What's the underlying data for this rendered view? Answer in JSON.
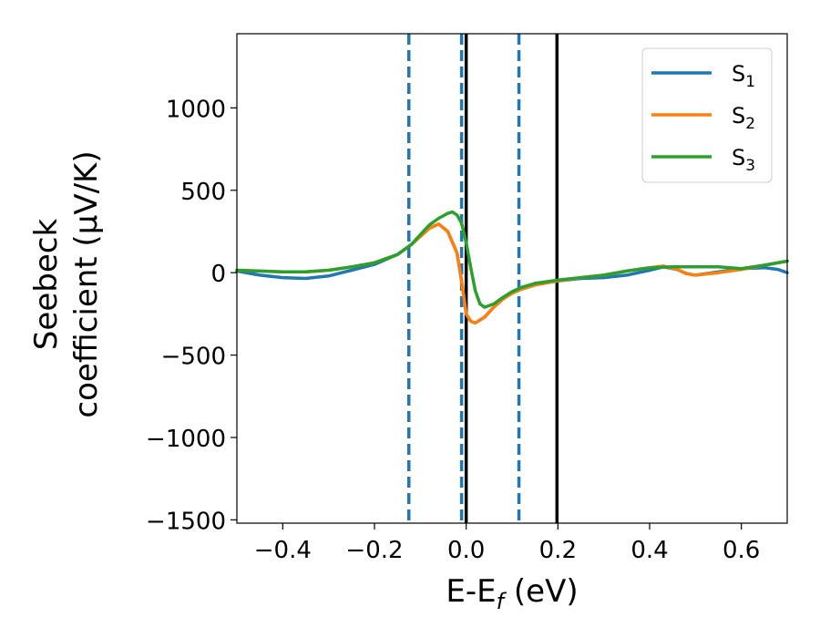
{
  "chart_data": {
    "type": "line",
    "xlabel_main": "E-E",
    "xlabel_sub": "f",
    "xlabel_unit": " (eV)",
    "ylabel_line1": "Seebeck",
    "ylabel_line2": "coefficient  (μV/K)",
    "xlim": [
      -0.5,
      0.7
    ],
    "ylim": [
      -1520,
      1450
    ],
    "x_ticks": [
      -0.4,
      -0.2,
      0.0,
      0.2,
      0.4,
      0.6
    ],
    "x_tick_labels": [
      "−0.4",
      "−0.2",
      "0.0",
      "0.2",
      "0.4",
      "0.6"
    ],
    "y_ticks": [
      1000,
      500,
      0,
      -500,
      -1000,
      -1500
    ],
    "y_tick_labels": [
      "1000",
      "500",
      "0",
      "−500",
      "−1000",
      "−1500"
    ],
    "grid": false,
    "legend_position": "top-right",
    "series": [
      {
        "name_main": "S",
        "name_sub": "1",
        "color": "#1f77b4",
        "points": [
          [
            -0.5,
            10
          ],
          [
            -0.45,
            -15
          ],
          [
            -0.4,
            -30
          ],
          [
            -0.35,
            -35
          ],
          [
            -0.3,
            -20
          ],
          [
            -0.25,
            15
          ],
          [
            -0.2,
            50
          ],
          [
            -0.15,
            110
          ],
          [
            -0.12,
            170
          ],
          [
            -0.1,
            220
          ],
          [
            -0.08,
            270
          ],
          [
            -0.06,
            295
          ],
          [
            -0.04,
            250
          ],
          [
            -0.02,
            120
          ],
          [
            -0.01,
            -50
          ],
          [
            0.0,
            -250
          ],
          [
            0.01,
            -295
          ],
          [
            0.02,
            -305
          ],
          [
            0.04,
            -270
          ],
          [
            0.06,
            -210
          ],
          [
            0.08,
            -160
          ],
          [
            0.1,
            -125
          ],
          [
            0.12,
            -100
          ],
          [
            0.15,
            -75
          ],
          [
            0.2,
            -50
          ],
          [
            0.25,
            -35
          ],
          [
            0.3,
            -30
          ],
          [
            0.35,
            -15
          ],
          [
            0.4,
            15
          ],
          [
            0.43,
            35
          ],
          [
            0.46,
            20
          ],
          [
            0.48,
            -5
          ],
          [
            0.5,
            -15
          ],
          [
            0.55,
            5
          ],
          [
            0.6,
            25
          ],
          [
            0.65,
            30
          ],
          [
            0.68,
            20
          ],
          [
            0.7,
            0
          ]
        ]
      },
      {
        "name_main": "S",
        "name_sub": "2",
        "color": "#ff7f0e",
        "points": [
          [
            -0.5,
            15
          ],
          [
            -0.45,
            10
          ],
          [
            -0.4,
            5
          ],
          [
            -0.35,
            5
          ],
          [
            -0.3,
            15
          ],
          [
            -0.25,
            35
          ],
          [
            -0.2,
            60
          ],
          [
            -0.15,
            110
          ],
          [
            -0.12,
            170
          ],
          [
            -0.1,
            220
          ],
          [
            -0.08,
            270
          ],
          [
            -0.06,
            295
          ],
          [
            -0.04,
            250
          ],
          [
            -0.02,
            120
          ],
          [
            -0.01,
            -50
          ],
          [
            0.0,
            -250
          ],
          [
            0.01,
            -295
          ],
          [
            0.02,
            -305
          ],
          [
            0.04,
            -270
          ],
          [
            0.06,
            -210
          ],
          [
            0.08,
            -160
          ],
          [
            0.1,
            -125
          ],
          [
            0.12,
            -100
          ],
          [
            0.15,
            -75
          ],
          [
            0.2,
            -50
          ],
          [
            0.25,
            -30
          ],
          [
            0.3,
            -15
          ],
          [
            0.35,
            10
          ],
          [
            0.4,
            30
          ],
          [
            0.43,
            40
          ],
          [
            0.46,
            20
          ],
          [
            0.48,
            -5
          ],
          [
            0.5,
            -15
          ],
          [
            0.55,
            0
          ],
          [
            0.6,
            20
          ],
          [
            0.65,
            45
          ],
          [
            0.7,
            70
          ]
        ]
      },
      {
        "name_main": "S",
        "name_sub": "3",
        "color": "#2ca02c",
        "points": [
          [
            -0.5,
            15
          ],
          [
            -0.45,
            10
          ],
          [
            -0.4,
            5
          ],
          [
            -0.35,
            5
          ],
          [
            -0.3,
            15
          ],
          [
            -0.25,
            35
          ],
          [
            -0.2,
            60
          ],
          [
            -0.15,
            110
          ],
          [
            -0.12,
            170
          ],
          [
            -0.1,
            230
          ],
          [
            -0.08,
            290
          ],
          [
            -0.06,
            330
          ],
          [
            -0.04,
            360
          ],
          [
            -0.03,
            368
          ],
          [
            -0.02,
            350
          ],
          [
            -0.01,
            300
          ],
          [
            0.0,
            180
          ],
          [
            0.01,
            30
          ],
          [
            0.02,
            -110
          ],
          [
            0.03,
            -190
          ],
          [
            0.04,
            -210
          ],
          [
            0.06,
            -190
          ],
          [
            0.08,
            -150
          ],
          [
            0.1,
            -115
          ],
          [
            0.12,
            -90
          ],
          [
            0.15,
            -65
          ],
          [
            0.2,
            -45
          ],
          [
            0.25,
            -30
          ],
          [
            0.3,
            -15
          ],
          [
            0.35,
            10
          ],
          [
            0.4,
            30
          ],
          [
            0.45,
            35
          ],
          [
            0.5,
            35
          ],
          [
            0.55,
            35
          ],
          [
            0.6,
            25
          ],
          [
            0.65,
            45
          ],
          [
            0.7,
            70
          ]
        ]
      }
    ],
    "vlines": [
      {
        "x": -0.125,
        "style": "dashed",
        "color": "#1f77b4"
      },
      {
        "x": -0.01,
        "style": "dashed",
        "color": "#1f77b4"
      },
      {
        "x": 0.115,
        "style": "dashed",
        "color": "#1f77b4"
      },
      {
        "x": 0.0,
        "style": "solid",
        "color": "#000000"
      },
      {
        "x": 0.198,
        "style": "solid",
        "color": "#000000"
      }
    ]
  }
}
